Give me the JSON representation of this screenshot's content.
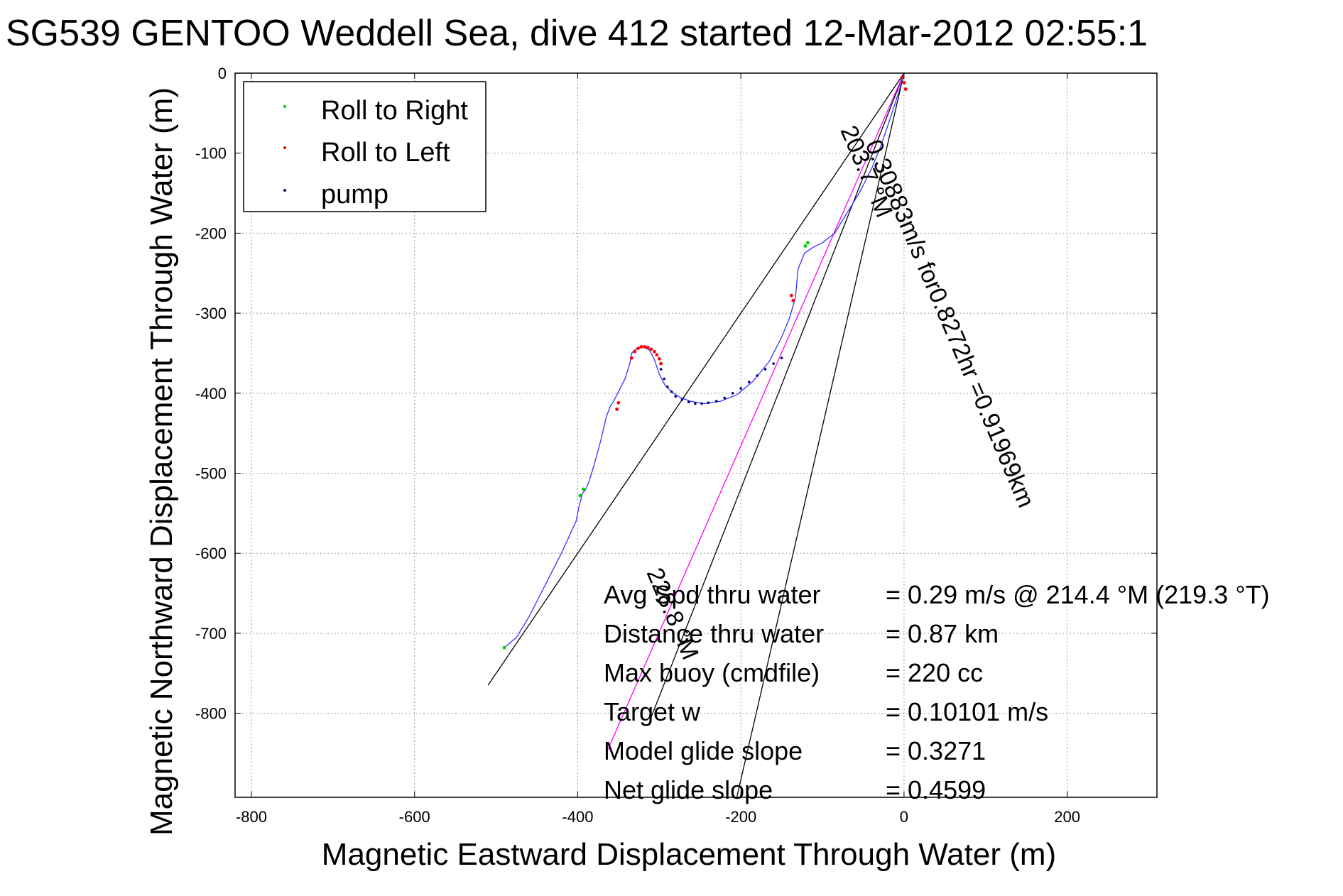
{
  "chart_data": {
    "type": "line",
    "title": "SG539 GENTOO Weddell Sea, dive 412 started 12-Mar-2012 02:55:1",
    "xlabel": "Magnetic Eastward Displacement Through Water (m)",
    "ylabel": "Magnetic Northward Displacement Through Water (m)",
    "xlim": [
      -820,
      310
    ],
    "ylim": [
      -905,
      0
    ],
    "xticks": [
      -800,
      -600,
      -400,
      -200,
      0,
      200
    ],
    "yticks": [
      0,
      -100,
      -200,
      -300,
      -400,
      -500,
      -600,
      -700,
      -800
    ],
    "grid": true,
    "legend_position": "top-left",
    "legend": [
      {
        "label": "Roll to Right",
        "color": "#00cc00"
      },
      {
        "label": "Roll to Left",
        "color": "#ff0000"
      },
      {
        "label": "pump",
        "color": "#000080"
      }
    ],
    "track": {
      "color": "#3333ff",
      "x": [
        0,
        -4,
        -10,
        -18,
        -28,
        -40,
        -55,
        -70,
        -85,
        -100,
        -112,
        -122,
        -130,
        -133,
        -140,
        -150,
        -165,
        -185,
        -205,
        -225,
        -245,
        -262,
        -275,
        -285,
        -293,
        -300,
        -306,
        -312,
        -320,
        -328,
        -334,
        -336,
        -342,
        -350,
        -356,
        -360,
        -365,
        -372,
        -380,
        -386,
        -390,
        -394,
        -398,
        -402,
        -420,
        -440,
        -460,
        -475,
        -490
      ],
      "y": [
        0,
        -15,
        -35,
        -60,
        -90,
        -120,
        -150,
        -175,
        -200,
        -212,
        -218,
        -225,
        -245,
        -280,
        -305,
        -330,
        -360,
        -385,
        -402,
        -410,
        -413,
        -410,
        -405,
        -398,
        -390,
        -376,
        -358,
        -346,
        -342,
        -344,
        -350,
        -362,
        -382,
        -398,
        -410,
        -416,
        -430,
        -460,
        -490,
        -510,
        -520,
        -525,
        -540,
        -560,
        -600,
        -640,
        -680,
        -705,
        -718
      ]
    },
    "markers": {
      "roll_right": {
        "x": [
          -121,
          -118,
          -393,
          -397,
          -490
        ],
        "y": [
          -216,
          -212,
          -520,
          -528,
          -718
        ]
      },
      "roll_left": {
        "x": [
          -2,
          0,
          2,
          -350,
          -352,
          -138,
          -136,
          -334,
          -330,
          -326,
          -322,
          -318,
          -314,
          -310,
          -306,
          -303,
          -300,
          -298
        ],
        "y": [
          -5,
          -12,
          -20,
          -412,
          -420,
          -278,
          -284,
          -356,
          -348,
          -344,
          -342,
          -342,
          -343,
          -345,
          -348,
          -352,
          -357,
          -363
        ]
      },
      "pump": {
        "x": [
          -298,
          -294,
          -290,
          -285,
          -280,
          -272,
          -264,
          -256,
          -248,
          -240,
          -230,
          -220,
          -210,
          -200,
          -190,
          -180,
          -170,
          -160,
          -150
        ],
        "y": [
          -370,
          -382,
          -392,
          -398,
          -404,
          -408,
          -411,
          -413,
          -413,
          -412,
          -410,
          -406,
          -400,
          -394,
          -386,
          -378,
          -370,
          -363,
          -356
        ]
      }
    },
    "reference_lines": [
      {
        "name": "heading_line",
        "color": "#000000",
        "x": [
          0,
          -510
        ],
        "y": [
          0,
          -765
        ]
      },
      {
        "name": "heading_line",
        "color": "#000000",
        "x": [
          0,
          -205
        ],
        "y": [
          0,
          -905
        ]
      },
      {
        "name": "heading_line",
        "color": "#000000",
        "x": [
          0,
          -310
        ],
        "y": [
          0,
          -805
        ]
      },
      {
        "name": "course_line",
        "color": "#ff00ff",
        "x": [
          0,
          -365
        ],
        "y": [
          0,
          -850
        ]
      }
    ],
    "annotations": [
      {
        "text": "203.7 °M"
      },
      {
        "text": "0.30883m/s for0.8272hr =0.91969km"
      },
      {
        "text": "228.8 °M"
      }
    ],
    "summary": [
      {
        "label": "Avg Spd thru water",
        "value": "=  0.29 m/s @ 214.4 °M (219.3 °T)"
      },
      {
        "label": "Distance thru water",
        "value": "=  0.87 km"
      },
      {
        "label": "Max buoy (cmdfile)",
        "value": "= 220 cc"
      },
      {
        "label": "Target w",
        "value": "= 0.10101 m/s"
      },
      {
        "label": "Model glide slope",
        "value": "= 0.3271"
      },
      {
        "label": "Net glide slope",
        "value": "= 0.4599"
      }
    ]
  }
}
